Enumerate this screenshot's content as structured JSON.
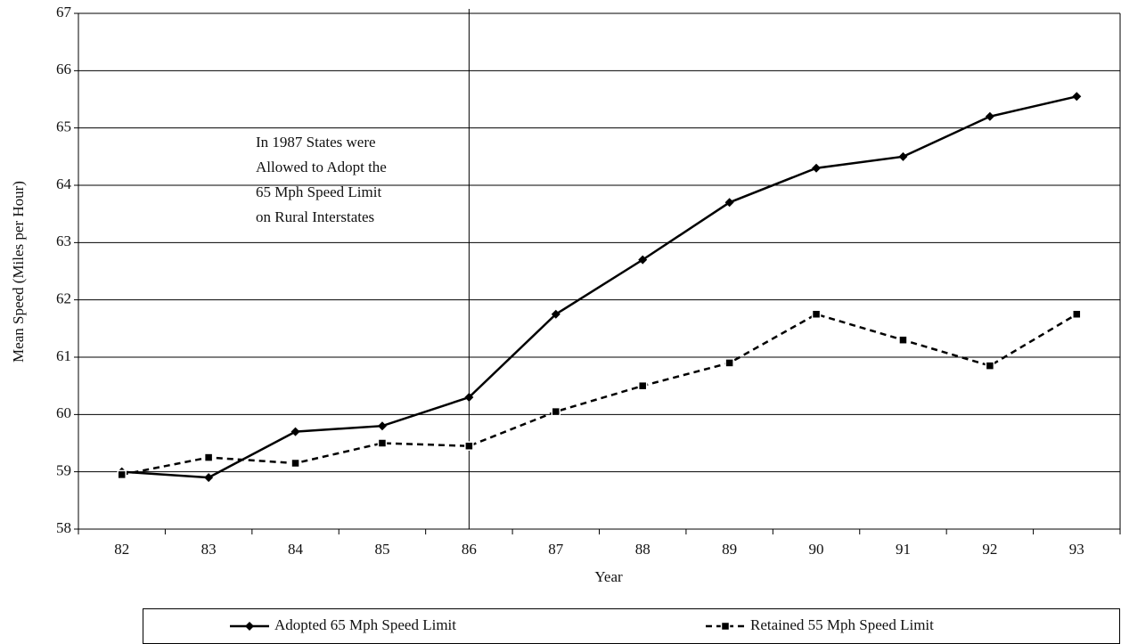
{
  "chart_data": {
    "type": "line",
    "x_label": "Year",
    "y_label": "Mean Speed (Miles per Hour)",
    "annotation": [
      "In 1987 States were",
      "Allowed to Adopt the",
      "65 Mph Speed Limit",
      "on Rural Interstates"
    ],
    "categories": [
      "82",
      "83",
      "84",
      "85",
      "86",
      "87",
      "88",
      "89",
      "90",
      "91",
      "92",
      "93"
    ],
    "series": [
      {
        "name": "Adopted 65 Mph Speed Limit",
        "color": "#000000",
        "values": [
          59.0,
          58.9,
          59.7,
          59.8,
          60.3,
          61.75,
          62.7,
          63.7,
          64.3,
          64.5,
          65.2,
          65.55
        ]
      },
      {
        "name": "Retained 55 Mph Speed Limit",
        "color": "#000000",
        "values": [
          58.95,
          59.25,
          59.15,
          59.5,
          59.45,
          60.05,
          60.5,
          60.9,
          61.75,
          61.3,
          60.85,
          61.75
        ]
      }
    ],
    "ylim": [
      58,
      67
    ],
    "yticks": [
      58,
      59,
      60,
      61,
      62,
      63,
      64,
      65,
      66,
      67
    ],
    "grid": true
  }
}
